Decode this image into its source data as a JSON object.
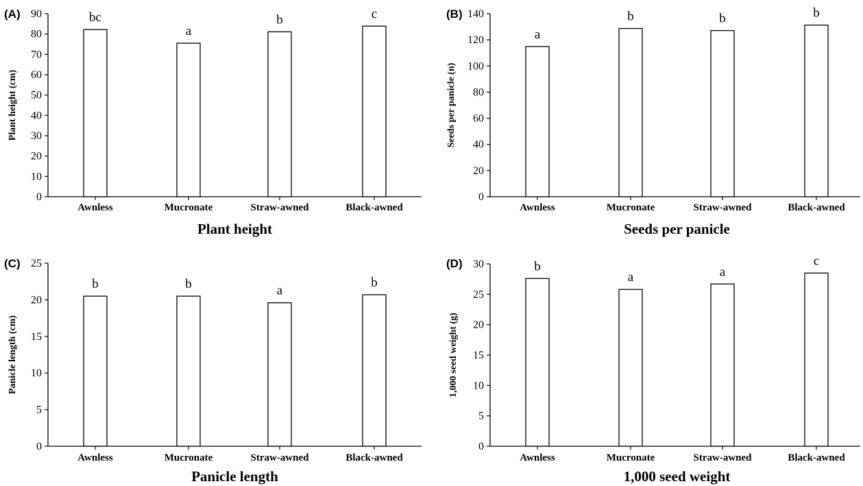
{
  "chart_data": [
    {
      "type": "bar",
      "panel": "(A)",
      "title": "Plant height",
      "ylabel": "Plant height (cm)",
      "categories": [
        "Awnless",
        "Mucronate",
        "Straw-awned",
        "Black-awned"
      ],
      "values": [
        82.2,
        75.5,
        81.1,
        83.9
      ],
      "significance": [
        "bc",
        "a",
        "b",
        "c"
      ],
      "ylim": [
        0,
        90
      ],
      "yticks": [
        0,
        10,
        20,
        30,
        40,
        50,
        60,
        70,
        80,
        90
      ]
    },
    {
      "type": "bar",
      "panel": "(B)",
      "title": "Seeds  per panicle",
      "ylabel": "Seeds per panicle  (n)",
      "categories": [
        "Awnless",
        "Mucronate",
        "Straw-awned",
        "Black-awned"
      ],
      "values": [
        114.9,
        128.7,
        127.1,
        131.3
      ],
      "significance": [
        "a",
        "b",
        "b",
        "b"
      ],
      "ylim": [
        0,
        140
      ],
      "yticks": [
        0,
        20,
        40,
        60,
        80,
        100,
        120,
        140
      ]
    },
    {
      "type": "bar",
      "panel": "(C)",
      "title": "Panicle length",
      "ylabel": "Panicle length (cm)",
      "categories": [
        "Awnless",
        "Mucronate",
        "Straw-awned",
        "Black-awned"
      ],
      "values": [
        20.5,
        20.5,
        19.6,
        20.7
      ],
      "significance": [
        "b",
        "b",
        "a",
        "b"
      ],
      "ylim": [
        0,
        25
      ],
      "yticks": [
        0,
        5,
        10,
        15,
        20,
        25
      ]
    },
    {
      "type": "bar",
      "panel": "(D)",
      "title": "1,000 seed weight",
      "ylabel": "1,000 seed weight (g)",
      "categories": [
        "Awnless",
        "Mucronate",
        "Straw-awned",
        "Black-awned"
      ],
      "values": [
        27.6,
        25.8,
        26.7,
        28.5
      ],
      "significance": [
        "b",
        "a",
        "a",
        "c"
      ],
      "ylim": [
        0,
        30
      ],
      "yticks": [
        0,
        5,
        10,
        15,
        20,
        25,
        30
      ]
    }
  ]
}
